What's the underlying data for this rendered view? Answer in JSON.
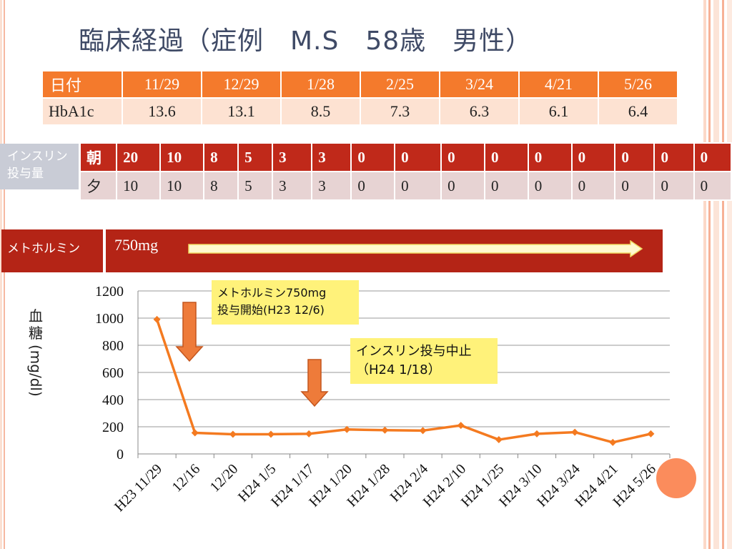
{
  "title": "臨床経過（症例　M.S　58歳　男性）",
  "hba1c_table": {
    "header_label": "日付",
    "row_label": "HbA1c",
    "dates": [
      "11/29",
      "12/29",
      "1/28",
      "2/25",
      "3/24",
      "4/21",
      "5/26"
    ],
    "values": [
      "13.6",
      "13.1",
      "8.5",
      "7.3",
      "6.3",
      "6.1",
      "6.4"
    ]
  },
  "insulin": {
    "label": "インスリン投与量",
    "morning_label": "朝",
    "evening_label": "夕",
    "morning": [
      "20",
      "10",
      "8",
      "5",
      "3",
      "3",
      "0",
      "0",
      "0",
      "0",
      "0",
      "0",
      "0",
      "0",
      "0"
    ],
    "evening": [
      "10",
      "10",
      "8",
      "5",
      "3",
      "3",
      "0",
      "0",
      "0",
      "0",
      "0",
      "0",
      "0",
      "0",
      "0"
    ]
  },
  "metformin": {
    "label": "メトホルミン",
    "dose": "750mg"
  },
  "annotations": [
    {
      "text_line1": "メトホルミン750mg",
      "text_line2": "投与開始(H23 12/6)"
    },
    {
      "text_line1": "インスリン投与中止",
      "text_line2": "（H24 1/18）"
    }
  ],
  "colors": {
    "orange": "#f47a2c",
    "red": "#c0291a",
    "dark_red": "#b42416",
    "note_yellow": "#fff27a",
    "line": "#f47a20"
  },
  "chart_data": {
    "type": "line",
    "ylabel": "血糖 (mg/dl)",
    "ylabel_chars": [
      "血",
      "糖"
    ],
    "ylabel_unit": "(mg/dl)",
    "ylim": [
      0,
      1200
    ],
    "yticks": [
      0,
      200,
      400,
      600,
      800,
      1000,
      1200
    ],
    "categories": [
      "H23 11/29",
      "12/16",
      "12/20",
      "H24 1/5",
      "H24 1/17",
      "H24 1/20",
      "H24  1/28",
      "H24 2/4",
      "H24 2/10",
      "H24 1/25",
      "H24 3/10",
      "H24 3/24",
      "H24 4/21",
      "H24 5/26"
    ],
    "series": [
      {
        "values": [
          990,
          155,
          145,
          145,
          148,
          180,
          175,
          172,
          210,
          105,
          148,
          160,
          85,
          148
        ]
      }
    ],
    "grid": true
  }
}
